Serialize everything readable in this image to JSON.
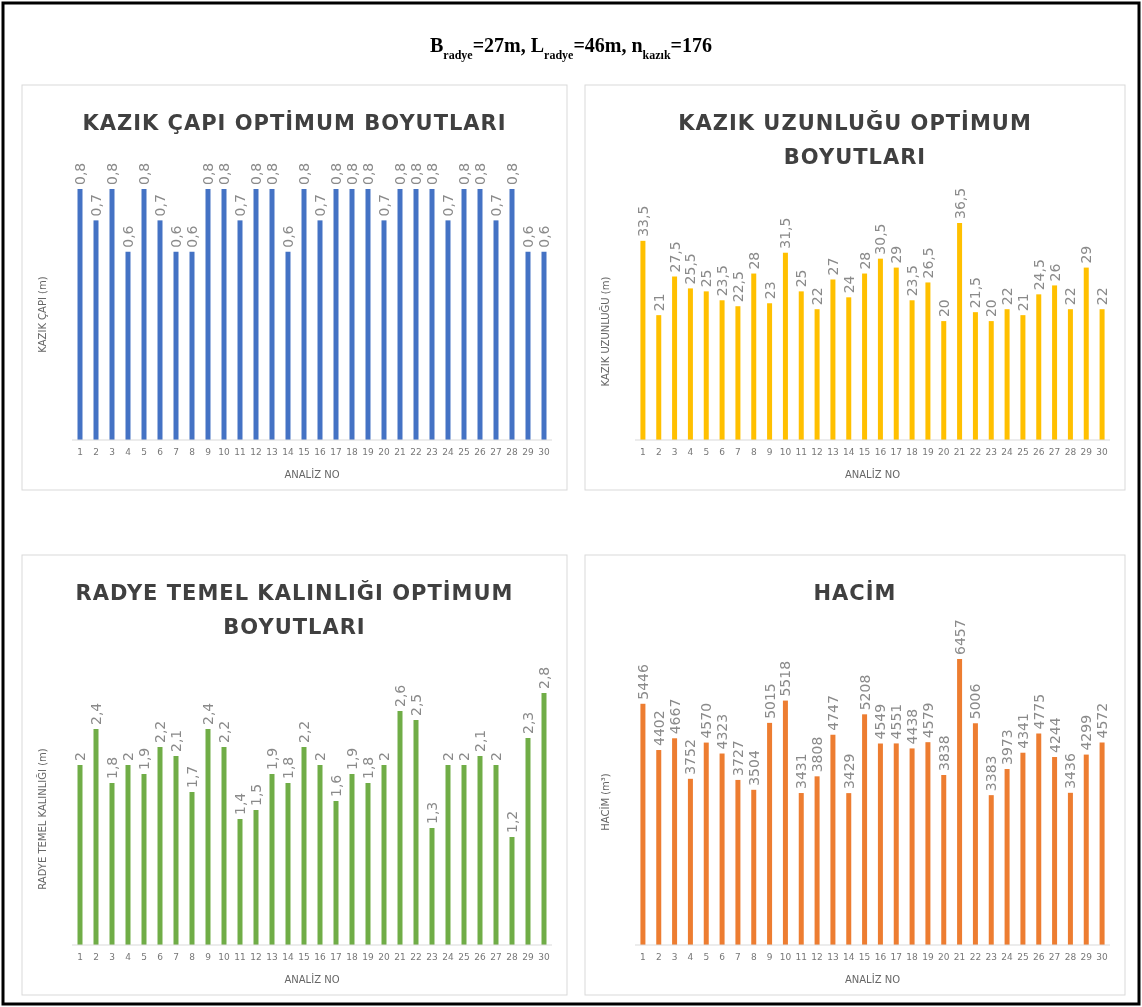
{
  "chart_data": [
    {
      "type": "bar",
      "title": "KAZIK ÇAPI OPTİMUM BOYUTLARI",
      "xlabel": "ANALİZ NO",
      "ylabel": "KAZIK ÇAPI (m)",
      "annotations": [
        "B$_{radye}$=27m, L$_{radye}$=46m, n$_{kazık}$=176"
      ],
      "x": [
        1,
        2,
        3,
        4,
        5,
        6,
        7,
        8,
        9,
        10,
        11,
        12,
        13,
        14,
        15,
        16,
        17,
        18,
        19,
        20,
        21,
        22,
        23,
        24,
        25,
        26,
        27,
        28,
        29,
        30
      ],
      "xlim": [
        0.5,
        30.5
      ],
      "xticks": [
        1,
        2,
        3,
        4,
        5,
        6,
        7,
        8,
        9,
        10,
        11,
        12,
        13,
        14,
        15,
        16,
        17,
        18,
        19,
        20,
        21,
        22,
        23,
        24,
        25,
        26,
        27,
        28,
        29,
        30
      ],
      "series": [
        {
          "color": "#4472c4",
          "values": [
            0.8,
            0.7,
            0.8,
            0.6,
            0.8,
            0.7,
            0.6,
            0.6,
            0.8,
            0.8,
            0.7,
            0.8,
            0.8,
            0.6,
            0.8,
            0.7,
            0.8,
            0.8,
            0.8,
            0.7,
            0.8,
            0.8,
            0.8,
            0.7,
            0.8,
            0.8,
            0.7,
            0.8,
            0.6,
            0.6
          ],
          "value_labels": [
            "0,8",
            "0,7",
            "0,8",
            "0,6",
            "0,8",
            "0,7",
            "0,6",
            "0,6",
            "0,8",
            "0,8",
            "0,7",
            "0,8",
            "0,8",
            "0,6",
            "0,8",
            "0,7",
            "0,8",
            "0,8",
            "0,8",
            "0,7",
            "0,8",
            "0,8",
            "0,8",
            "0,7",
            "0,8",
            "0,8",
            "0,7",
            "0,8",
            "0,6",
            "0,6"
          ]
        }
      ]
    },
    {
      "type": "bar",
      "title": "KAZIK UZUNLUĞU OPTİMUM BOYUTLARI",
      "xlabel": "ANALİZ NO",
      "ylabel": "KAZIK UZUNLUĞU (m)",
      "x": [
        1,
        2,
        3,
        4,
        5,
        6,
        7,
        8,
        9,
        10,
        11,
        12,
        13,
        14,
        15,
        16,
        17,
        18,
        19,
        20,
        21,
        22,
        23,
        24,
        25,
        26,
        27,
        28,
        29,
        30
      ],
      "xlim": [
        0.5,
        30.5
      ],
      "xticks": [
        1,
        2,
        3,
        4,
        5,
        6,
        7,
        8,
        9,
        10,
        11,
        12,
        13,
        14,
        15,
        16,
        17,
        18,
        19,
        20,
        21,
        22,
        23,
        24,
        25,
        26,
        27,
        28,
        29,
        30
      ],
      "series": [
        {
          "color": "#ffc000",
          "values": [
            33.5,
            21,
            27.5,
            25.5,
            25,
            23.5,
            22.5,
            28,
            23,
            31.5,
            25,
            22,
            27,
            24,
            28,
            30.5,
            29,
            23.5,
            26.5,
            20,
            36.5,
            21.5,
            20,
            22,
            21,
            24.5,
            26,
            22,
            29,
            22
          ],
          "value_labels": [
            "33,5",
            "21",
            "27,5",
            "25,5",
            "25",
            "23,5",
            "22,5",
            "28",
            "23",
            "31,5",
            "25",
            "22",
            "27",
            "24",
            "28",
            "30,5",
            "29",
            "23,5",
            "26,5",
            "20",
            "36,5",
            "21,5",
            "20",
            "22",
            "21",
            "24,5",
            "26",
            "22",
            "29",
            "22"
          ]
        }
      ]
    },
    {
      "type": "bar",
      "title": "RADYE TEMEL KALINLIĞI OPTİMUM BOYUTLARI",
      "xlabel": "ANALİZ NO",
      "ylabel": "RADYE TEMEL KALINLIĞI (m)",
      "x": [
        1,
        2,
        3,
        4,
        5,
        6,
        7,
        8,
        9,
        10,
        11,
        12,
        13,
        14,
        15,
        16,
        17,
        18,
        19,
        20,
        21,
        22,
        23,
        24,
        25,
        26,
        27,
        28,
        29,
        30
      ],
      "xlim": [
        0.5,
        30.5
      ],
      "xticks": [
        1,
        2,
        3,
        4,
        5,
        6,
        7,
        8,
        9,
        10,
        11,
        12,
        13,
        14,
        15,
        16,
        17,
        18,
        19,
        20,
        21,
        22,
        23,
        24,
        25,
        26,
        27,
        28,
        29,
        30
      ],
      "series": [
        {
          "color": "#70ad47",
          "values": [
            2,
            2.4,
            1.8,
            2,
            1.9,
            2.2,
            2.1,
            1.7,
            2.4,
            2.2,
            1.4,
            1.5,
            1.9,
            1.8,
            2.2,
            2,
            1.6,
            1.9,
            1.8,
            2,
            2.6,
            2.5,
            1.3,
            2,
            2,
            2.1,
            2,
            1.2,
            2.3,
            2.8
          ],
          "value_labels": [
            "2",
            "2,4",
            "1,8",
            "2",
            "1,9",
            "2,2",
            "2,1",
            "1,7",
            "2,4",
            "2,2",
            "1,4",
            "1,5",
            "1,9",
            "1,8",
            "2,2",
            "2",
            "1,6",
            "1,9",
            "1,8",
            "2",
            "2,6",
            "2,5",
            "1,3",
            "2",
            "2",
            "2,1",
            "2",
            "1,2",
            "2,3",
            "2,8"
          ]
        }
      ]
    },
    {
      "type": "bar",
      "title": "HACİM",
      "xlabel": "ANALİZ NO",
      "ylabel": "HACİM (m³)",
      "x": [
        1,
        2,
        3,
        4,
        5,
        6,
        7,
        8,
        9,
        10,
        11,
        12,
        13,
        14,
        15,
        16,
        17,
        18,
        19,
        20,
        21,
        22,
        23,
        24,
        25,
        26,
        27,
        28,
        29,
        30
      ],
      "xlim": [
        0.5,
        30.5
      ],
      "xticks": [
        1,
        2,
        3,
        4,
        5,
        6,
        7,
        8,
        9,
        10,
        11,
        12,
        13,
        14,
        15,
        16,
        17,
        18,
        19,
        20,
        21,
        22,
        23,
        24,
        25,
        26,
        27,
        28,
        29,
        30
      ],
      "series": [
        {
          "color": "#ed7d31",
          "values": [
            5446,
            4402,
            4667,
            3752,
            4570,
            4323,
            3727,
            3504,
            5015,
            5518,
            3431,
            3808,
            4747,
            3429,
            5208,
            4549,
            4551,
            4438,
            4579,
            3838,
            6457,
            5006,
            3383,
            3973,
            4341,
            4775,
            4244,
            3436,
            4299,
            4572
          ],
          "value_labels": [
            "5446",
            "4402",
            "4667",
            "3752",
            "4570",
            "4323",
            "3727",
            "3504",
            "5015",
            "5518",
            "3431",
            "3808",
            "4747",
            "3429",
            "5208",
            "4549",
            "4551",
            "4438",
            "4579",
            "3838",
            "6457",
            "5006",
            "3383",
            "3973",
            "4341",
            "4775",
            "4244",
            "3436",
            "4299",
            "4572"
          ]
        }
      ]
    }
  ]
}
